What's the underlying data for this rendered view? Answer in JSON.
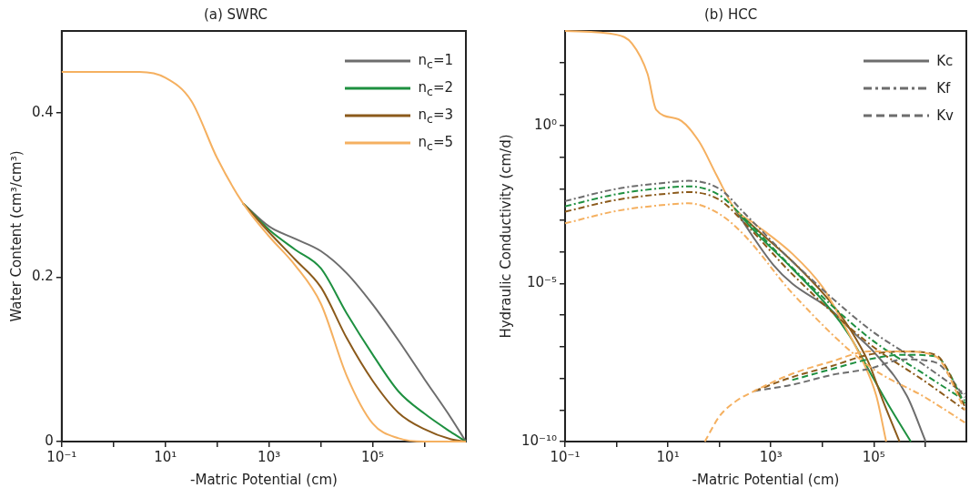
{
  "chart_data": [
    {
      "type": "line",
      "title": "(a) SWRC",
      "xlabel": "-Matric Potential (cm)",
      "ylabel": "Water Content (cm³/cm³)",
      "log": "x",
      "legend": "top right",
      "xlim": [
        0.1,
        6300000
      ],
      "ylim": [
        0,
        0.5
      ],
      "xticks": [
        {
          "value": 0.1,
          "label": "10⁻¹"
        },
        {
          "value": 1,
          "label": null
        },
        {
          "value": 10,
          "label": "10¹"
        },
        {
          "value": 100,
          "label": null
        },
        {
          "value": 1000,
          "label": "10³"
        },
        {
          "value": 10000,
          "label": null
        },
        {
          "value": 100000,
          "label": "10⁵"
        },
        {
          "value": 1000000,
          "label": null
        }
      ],
      "yticks": [
        0,
        0.2,
        0.4
      ],
      "x": [
        0.1,
        1,
        3.16,
        10,
        31.6,
        100,
        316,
        1000,
        3160,
        10000,
        31600,
        100000,
        316000,
        1000000,
        3160000,
        6300000
      ],
      "series": [
        {
          "name": "n$_{c}$=1",
          "color": "#6d6d6d",
          "line_style": "solid",
          "x": [
            316,
            1000,
            3160,
            10000,
            31600,
            100000,
            316000,
            1000000,
            3160000,
            6300000
          ],
          "values": [
            0.29,
            0.262,
            0.247,
            0.232,
            0.205,
            0.167,
            0.123,
            0.076,
            0.03,
            0
          ]
        },
        {
          "name": "n$_{c}$=2",
          "color": "#1e9040",
          "line_style": "solid",
          "x": [
            316,
            1000,
            3160,
            10000,
            31600,
            100000,
            316000,
            1000000,
            3160000,
            6300000
          ],
          "values": [
            0.29,
            0.258,
            0.234,
            0.211,
            0.156,
            0.106,
            0.061,
            0.034,
            0.012,
            0
          ]
        },
        {
          "name": "n$_{c}$=3",
          "color": "#8b5a1b",
          "line_style": "solid",
          "x": [
            316,
            1000,
            3160,
            10000,
            31600,
            100000,
            316000,
            1000000,
            3160000,
            6300000
          ],
          "values": [
            0.29,
            0.255,
            0.222,
            0.188,
            0.126,
            0.074,
            0.035,
            0.015,
            0.003,
            0
          ]
        },
        {
          "name": "n$_{c}$=5",
          "color": "#f5b060",
          "line_style": "solid",
          "values": [
            0.45,
            0.45,
            0.45,
            0.443,
            0.415,
            0.345,
            0.29,
            0.25,
            0.215,
            0.168,
            0.08,
            0.022,
            0.004,
            0,
            0,
            0
          ]
        }
      ]
    },
    {
      "type": "line",
      "title": "(b) HCC",
      "xlabel": "-Matric Potential (cm)",
      "ylabel": "Hydraulic Conductivity (cm/d)",
      "log": "xy",
      "legend": "top right",
      "xlim": [
        0.1,
        6300000
      ],
      "ylim": [
        1e-10,
        1000
      ],
      "xticks": [
        {
          "value": 0.1,
          "label": "10⁻¹"
        },
        {
          "value": 1,
          "label": null
        },
        {
          "value": 10,
          "label": "10¹"
        },
        {
          "value": 100,
          "label": null
        },
        {
          "value": 1000,
          "label": "10³"
        },
        {
          "value": 10000,
          "label": null
        },
        {
          "value": 100000,
          "label": "10⁵"
        },
        {
          "value": 1000000,
          "label": null
        }
      ],
      "yticks": [
        {
          "value": 1e-10,
          "label": "10⁻¹⁰"
        },
        {
          "value": 1e-09,
          "label": null
        },
        {
          "value": 1e-08,
          "label": null
        },
        {
          "value": 1e-07,
          "label": null
        },
        {
          "value": 1e-06,
          "label": null
        },
        {
          "value": 1e-05,
          "label": "10⁻⁵"
        },
        {
          "value": 0.0001,
          "label": null
        },
        {
          "value": 0.001,
          "label": null
        },
        {
          "value": 0.01,
          "label": null
        },
        {
          "value": 0.1,
          "label": null
        },
        {
          "value": 1,
          "label": "10⁰"
        },
        {
          "value": 10,
          "label": null
        },
        {
          "value": 100,
          "label": null
        }
      ],
      "series": [
        {
          "name": "Kc",
          "color": "#6d6d6d",
          "line_style": "solid",
          "x": [
            200,
            480,
            1120,
            2600,
            14500,
            40000,
            112000,
            440000,
            1020000
          ],
          "values": [
            0.0023,
            0.00026,
            3.9e-05,
            1e-05,
            1.5e-06,
            2.9e-07,
            5.6e-08,
            2.8e-09,
            1e-10
          ]
        },
        {
          "color": "#1e9040",
          "line_style": "solid",
          "x": [
            200,
            480,
            2600,
            14500,
            34000,
            79000,
            186000,
            525000
          ],
          "values": [
            0.0023,
            0.00046,
            3e-05,
            1.5e-06,
            2.2e-07,
            1.9e-08,
            1.6e-09,
            1e-10
          ]
        },
        {
          "color": "#8b5a1b",
          "line_style": "solid",
          "x": [
            200,
            480,
            2600,
            14500,
            34000,
            79000,
            158000,
            316000
          ],
          "values": [
            0.0023,
            0.0006,
            5.1e-05,
            2.6e-06,
            3.8e-07,
            3.2e-08,
            1.6e-09,
            1e-10
          ]
        },
        {
          "color": "#f5b060",
          "line_style": "solid",
          "x": [
            0.1,
            1,
            2,
            4,
            5.9,
            16,
            40,
            87,
            200,
            480,
            2600,
            10200,
            24000,
            57500,
            112000,
            174000
          ],
          "values": [
            1000,
            760,
            400,
            44,
            3.2,
            1.6,
            0.32,
            0.028,
            0.0023,
            0.00079,
            8.9e-05,
            7.6e-06,
            6.6e-07,
            4.3e-08,
            2.8e-09,
            1e-10
          ]
        },
        {
          "name": "Kf",
          "color": "#6d6d6d",
          "line_style": "dashdot",
          "x": [
            0.1,
            1,
            10,
            25,
            100,
            316,
            2600,
            79000,
            1000000,
            5900000
          ],
          "values": [
            0.0041,
            0.01,
            0.016,
            0.018,
            0.01,
            0.0016,
            5.1e-05,
            3.8e-07,
            2.5e-08,
            3.2e-09
          ]
        },
        {
          "color": "#1e9040",
          "line_style": "dashdot",
          "x": [
            0.1,
            1,
            10,
            25,
            100,
            316,
            2600,
            79000,
            1000000,
            5900000
          ],
          "values": [
            0.0028,
            0.0068,
            0.011,
            0.012,
            0.0063,
            0.0011,
            3.2e-05,
            2e-07,
            1.3e-08,
            2e-09
          ]
        },
        {
          "color": "#8b5a1b",
          "line_style": "dashdot",
          "x": [
            0.1,
            1,
            10,
            25,
            100,
            316,
            2600,
            79000,
            1000000,
            5900000
          ],
          "values": [
            0.0019,
            0.0045,
            0.0071,
            0.0079,
            0.0045,
            0.00079,
            2e-05,
            1.3e-07,
            7.9e-09,
            1e-09
          ]
        },
        {
          "color": "#f5b060",
          "line_style": "dashdot",
          "x": [
            0.1,
            1,
            10,
            25,
            100,
            316,
            2600,
            79000,
            1000000,
            5900000
          ],
          "values": [
            0.00081,
            0.002,
            0.0032,
            0.0035,
            0.0016,
            0.00032,
            5e-06,
            2.5e-08,
            2.5e-09,
            4e-10
          ]
        },
        {
          "name": "Kv",
          "color": "#6d6d6d",
          "line_style": "dashed",
          "x": [
            480,
            2600,
            15800,
            79000,
            398000,
            1580000,
            5900000
          ],
          "values": [
            4e-09,
            6.3e-09,
            1.3e-08,
            2e-08,
            4e-08,
            3.2e-08,
            2.5e-09
          ]
        },
        {
          "color": "#1e9040",
          "line_style": "dashed",
          "x": [
            2600,
            15800,
            79000,
            398000,
            1580000,
            5900000
          ],
          "values": [
            8.9e-09,
            2e-08,
            4e-08,
            5.6e-08,
            5e-08,
            1.6e-09
          ]
        },
        {
          "color": "#8b5a1b",
          "line_style": "dashed",
          "x": [
            480,
            2600,
            15800,
            79000,
            398000,
            1580000,
            5900000
          ],
          "values": [
            4e-09,
            1.1e-08,
            2.5e-08,
            5.6e-08,
            7.1e-08,
            5.6e-08,
            1.3e-09
          ]
        },
        {
          "color": "#f5b060",
          "line_style": "dashed",
          "x": [
            52,
            100,
            200,
            480,
            2600,
            15800,
            79000,
            398000,
            1580000,
            5900000
          ],
          "values": [
            1e-10,
            6.3e-10,
            1.8e-09,
            4e-09,
            1.4e-08,
            3.5e-08,
            7.1e-08,
            7.1e-08,
            5e-08,
            1e-09
          ]
        }
      ]
    }
  ]
}
